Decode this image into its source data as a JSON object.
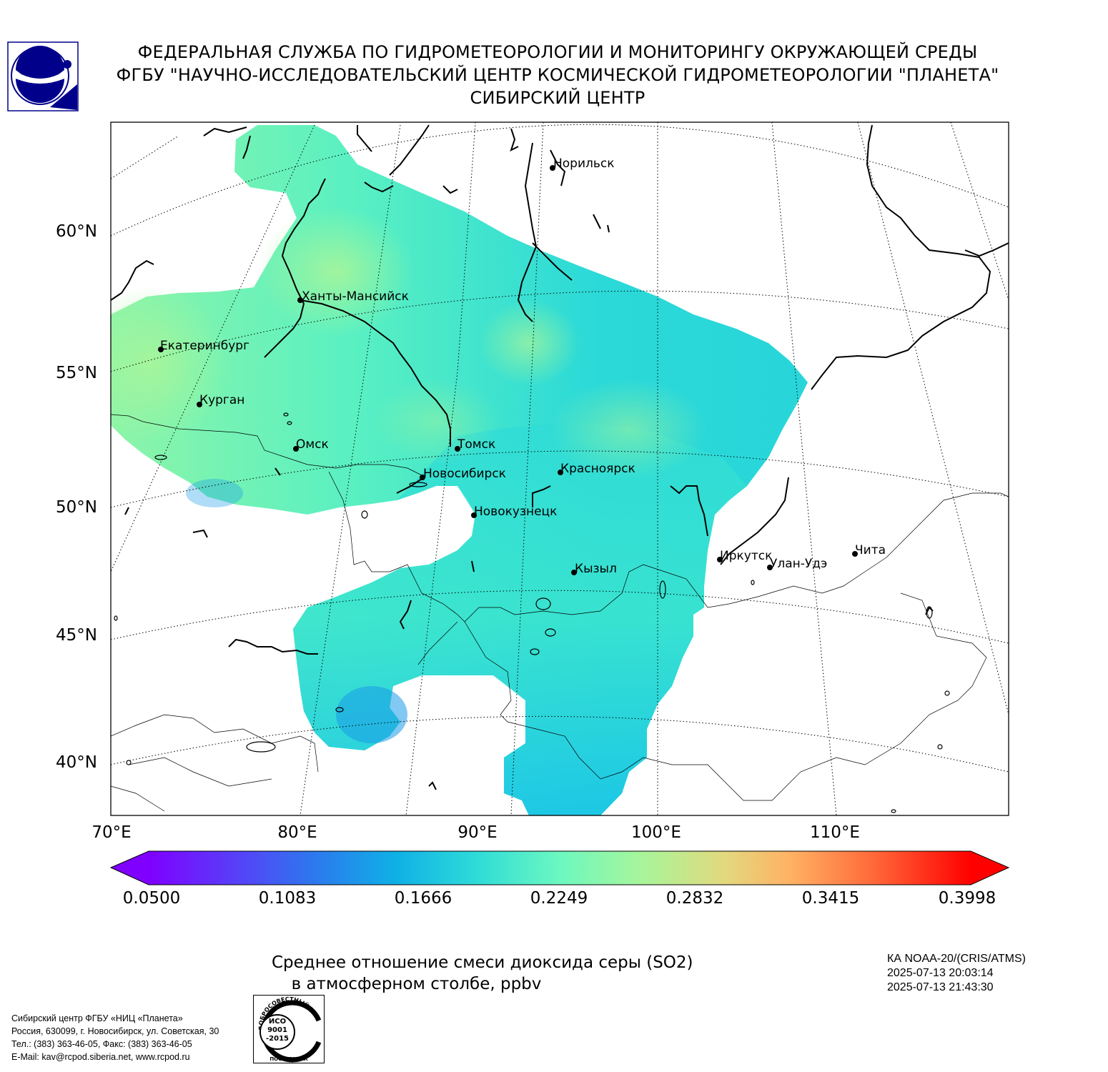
{
  "header": {
    "line1": "ФЕДЕРАЛЬНАЯ СЛУЖБА ПО ГИДРОМЕТЕОРОЛОГИИ И МОНИТОРИНГУ ОКРУЖАЮЩЕЙ СРЕДЫ",
    "line2": "ФГБУ \"НАУЧНО-ИССЛЕДОВАТЕЛЬСКИЙ ЦЕНТР КОСМИЧЕСКОЙ ГИДРОМЕТЕОРОЛОГИИ \"ПЛАНЕТА\"",
    "line3": "СИБИРСКИЙ ЦЕНТР"
  },
  "logo_icon": "planeta-emblem-icon",
  "map": {
    "lat_labels": [
      "60°N",
      "55°N",
      "50°N",
      "45°N",
      "40°N"
    ],
    "lon_labels": [
      "70°E",
      "80°E",
      "90°E",
      "100°E",
      "110°E"
    ],
    "cities": [
      {
        "name": "Норильск"
      },
      {
        "name": "Ханты-Мансийск"
      },
      {
        "name": "Екатеринбург"
      },
      {
        "name": "Курган"
      },
      {
        "name": "Омск"
      },
      {
        "name": "Томск"
      },
      {
        "name": "Новосибирск"
      },
      {
        "name": "Красноярск"
      },
      {
        "name": "Новокузнецк"
      },
      {
        "name": "Иркутск"
      },
      {
        "name": "Улан-Удэ"
      },
      {
        "name": "Чита"
      },
      {
        "name": "Кызыл"
      }
    ],
    "colors": {
      "low": "#7f00ff",
      "mid_low": "#1ec8e6",
      "mid": "#78ffc0",
      "high": "#ff0000"
    }
  },
  "colorbar": {
    "min": 0.05,
    "max": 0.3998,
    "ticks": [
      "0.0500",
      "0.1083",
      "0.1666",
      "0.2249",
      "0.2832",
      "0.3415",
      "0.3998"
    ]
  },
  "caption": {
    "line1": "Среднее отношение смеси диоксида серы (SO2)",
    "line2": "в атмосферном столбе, ppbv"
  },
  "satellite": {
    "line1": "КА NOAA-20/(CRIS/ATMS)",
    "line2": "2025-07-13 20:03:14",
    "line3": "2025-07-13 21:43:30"
  },
  "footer": {
    "line1": "Сибирский центр ФГБУ «НИЦ «Планета»",
    "line2": "Россия, 630099, г. Новосибирск, ул. Советская, 30",
    "line3": "Тел.: (383) 363-46-05, Факс: (383) 363-46-05",
    "line4": "E-Mail: kav@rcpod.siberia.net, www.rcpod.ru"
  },
  "iso_stamp": {
    "arc_text": "ДОБРОСОВЕСТНЫЙ",
    "text1": "ИСО",
    "text2": "9001",
    "text3": "-2015",
    "bottom_text": "ПОСТАВЩИК"
  }
}
